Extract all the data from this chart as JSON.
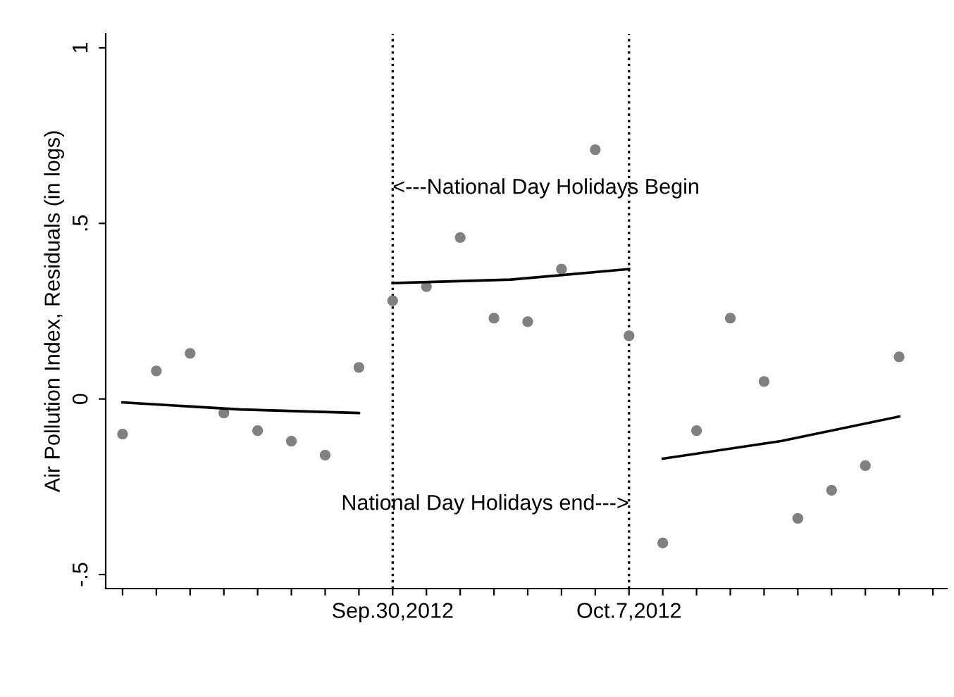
{
  "chart_data": {
    "type": "scatter",
    "ylabel": "Air Pollution Index, Residuals (in logs)",
    "x": [
      "2012-09-22",
      "2012-09-23",
      "2012-09-24",
      "2012-09-25",
      "2012-09-26",
      "2012-09-27",
      "2012-09-28",
      "2012-09-29",
      "2012-09-30",
      "2012-10-01",
      "2012-10-02",
      "2012-10-03",
      "2012-10-04",
      "2012-10-05",
      "2012-10-06",
      "2012-10-07",
      "2012-10-08",
      "2012-10-09",
      "2012-10-10",
      "2012-10-11",
      "2012-10-12",
      "2012-10-13",
      "2012-10-14",
      "2012-10-15"
    ],
    "series": [
      {
        "color": "#808080",
        "marker": "circle",
        "values": [
          -0.1,
          0.08,
          0.13,
          -0.04,
          -0.09,
          -0.12,
          -0.16,
          0.09,
          0.28,
          0.32,
          0.46,
          0.23,
          0.22,
          0.37,
          0.71,
          0.18,
          -0.41,
          -0.09,
          0.23,
          0.05,
          -0.34,
          -0.26,
          -0.19,
          0.12
        ]
      },
      {
        "type": "line",
        "color": "#000000",
        "marker": "none",
        "line_style": "solid",
        "x": [
          "2012-09-22",
          "2012-09-25T12:00",
          "2012-09-29"
        ],
        "values": [
          -0.01,
          -0.03,
          -0.04
        ]
      },
      {
        "type": "line",
        "color": "#000000",
        "marker": "none",
        "line_style": "solid",
        "x": [
          "2012-09-30",
          "2012-10-03T12:00",
          "2012-10-07"
        ],
        "values": [
          0.33,
          0.34,
          0.37
        ]
      },
      {
        "type": "line",
        "color": "#000000",
        "marker": "none",
        "line_style": "solid",
        "x": [
          "2012-10-08",
          "2012-10-11T12:00",
          "2012-10-15"
        ],
        "values": [
          -0.17,
          -0.12,
          -0.05
        ]
      }
    ],
    "xlim": [
      "2012-09-21T12:00",
      "2012-10-16T10:00"
    ],
    "xticks": [
      {
        "value": "2012-09-22",
        "label": null
      },
      {
        "value": "2012-09-23",
        "label": null
      },
      {
        "value": "2012-09-24",
        "label": null
      },
      {
        "value": "2012-09-25",
        "label": null
      },
      {
        "value": "2012-09-26",
        "label": null
      },
      {
        "value": "2012-09-27",
        "label": null
      },
      {
        "value": "2012-09-28",
        "label": null
      },
      {
        "value": "2012-09-29",
        "label": null
      },
      {
        "value": "2012-09-30",
        "label": "Sep.30,2012"
      },
      {
        "value": "2012-10-01",
        "label": null
      },
      {
        "value": "2012-10-02",
        "label": null
      },
      {
        "value": "2012-10-03",
        "label": null
      },
      {
        "value": "2012-10-04",
        "label": null
      },
      {
        "value": "2012-10-05",
        "label": null
      },
      {
        "value": "2012-10-06",
        "label": null
      },
      {
        "value": "2012-10-07",
        "label": "Oct.7,2012"
      },
      {
        "value": "2012-10-08",
        "label": null
      },
      {
        "value": "2012-10-09",
        "label": null
      },
      {
        "value": "2012-10-10",
        "label": null
      },
      {
        "value": "2012-10-11",
        "label": null
      },
      {
        "value": "2012-10-12",
        "label": null
      },
      {
        "value": "2012-10-13",
        "label": null
      },
      {
        "value": "2012-10-14",
        "label": null
      },
      {
        "value": "2012-10-15",
        "label": null
      },
      {
        "value": "2012-10-16",
        "label": null
      }
    ],
    "ylim": [
      -0.54,
      1.04
    ],
    "yticks": [
      {
        "value": -0.5,
        "label": "-.5"
      },
      0,
      {
        "value": 0.5,
        "label": ".5"
      },
      1
    ],
    "ref_lines": [
      {
        "axis": "x",
        "value": "2012-09-30",
        "color": "#000000",
        "line_style": "dotted"
      },
      {
        "axis": "x",
        "value": "2012-10-07",
        "color": "#000000",
        "line_style": "dotted"
      }
    ],
    "annotations": [
      {
        "text": "<---National Day Holidays Begin",
        "x": "2012-09-30",
        "y": 0.6
      },
      {
        "text": "National Day Holidays end--->",
        "x": "2012-10-07",
        "y": -0.3
      }
    ],
    "grid": false,
    "legend": false
  }
}
